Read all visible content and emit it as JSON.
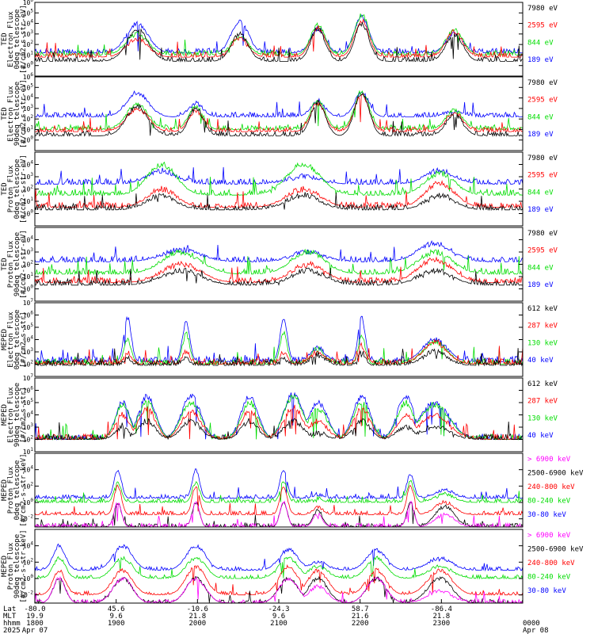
{
  "chart_data": {
    "type": "line",
    "x_axis": {
      "rows": [
        {
          "name": "Lat",
          "values": [
            "-80.0",
            "45.6",
            "-10.6",
            "-24.3",
            "58.7",
            "-86.4",
            ""
          ]
        },
        {
          "name": "MLT",
          "values": [
            "19.9",
            "9.6",
            "21.8",
            "9.6",
            "21.6",
            "21.8",
            ""
          ]
        },
        {
          "name": "hhmm",
          "values": [
            "1800",
            "1900",
            "2000",
            "2100",
            "2200",
            "2300",
            "0000"
          ]
        },
        {
          "name": "2025",
          "values": [
            "Apr 07",
            "",
            "",
            "",
            "",
            "",
            "Apr 08"
          ]
        }
      ],
      "time_range_hours": [
        18,
        24
      ]
    },
    "panels": [
      {
        "ylabel": [
          "TED",
          "Electron Flux",
          "0deg telescope",
          "[#/cm2-s-str-eV]"
        ],
        "yscale": "log",
        "ylim_exp": [
          -1,
          6
        ],
        "tick_exps": [
          0,
          1,
          2,
          3,
          4,
          5,
          6
        ],
        "legend": [
          {
            "text": "7980 eV",
            "color": "#000000"
          },
          {
            "text": "2595 eV",
            "color": "#ff0000"
          },
          {
            "text": "844 eV",
            "color": "#00dd00"
          },
          {
            "text": "189 eV",
            "color": "#0000ff"
          }
        ],
        "bursts": [
          {
            "center": 0.21,
            "width": 0.045,
            "peak": [
              3.4,
              2.5,
              3.0,
              4.0
            ]
          },
          {
            "center": 0.42,
            "width": 0.035,
            "peak": [
              3.0,
              2.6,
              2.8,
              4.2
            ]
          },
          {
            "center": 0.58,
            "width": 0.03,
            "peak": [
              3.5,
              3.6,
              3.8,
              3.5
            ]
          },
          {
            "center": 0.67,
            "width": 0.03,
            "peak": [
              4.0,
              4.2,
              4.8,
              4.6
            ]
          },
          {
            "center": 0.86,
            "width": 0.035,
            "peak": [
              3.0,
              3.2,
              3.4,
              3.0
            ]
          }
        ],
        "baseline": [
          0.4,
          0.8,
          1.0,
          1.2
        ]
      },
      {
        "ylabel": [
          "TED",
          "Electron Flux",
          "90deg telescope",
          "[#/cm2-s-str-eV]"
        ],
        "yscale": "log",
        "ylim_exp": [
          -1,
          6
        ],
        "tick_exps": [
          0,
          1,
          2,
          3,
          4,
          5,
          6
        ],
        "legend": [
          {
            "text": "7980 eV",
            "color": "#000000"
          },
          {
            "text": "2595 eV",
            "color": "#ff0000"
          },
          {
            "text": "844 eV",
            "color": "#00dd00"
          },
          {
            "text": "189 eV",
            "color": "#0000ff"
          }
        ],
        "bursts": [
          {
            "center": 0.21,
            "width": 0.045,
            "peak": [
              3.2,
              3.0,
              3.4,
              4.5
            ]
          },
          {
            "center": 0.33,
            "width": 0.03,
            "peak": [
              3.0,
              2.8,
              3.2,
              3.5
            ]
          },
          {
            "center": 0.58,
            "width": 0.03,
            "peak": [
              3.6,
              3.5,
              3.8,
              3.7
            ]
          },
          {
            "center": 0.67,
            "width": 0.03,
            "peak": [
              4.5,
              4.2,
              4.6,
              4.5
            ]
          },
          {
            "center": 0.86,
            "width": 0.035,
            "peak": [
              2.4,
              2.6,
              2.8,
              2.8
            ]
          }
        ],
        "baseline": [
          0.4,
          0.8,
          1.0,
          2.2
        ]
      },
      {
        "ylabel": [
          "TED",
          "Proton Flux",
          "0deg telescope",
          "[#/cm2-s-str-eV]"
        ],
        "yscale": "log",
        "ylim_exp": [
          -1,
          5
        ],
        "tick_exps": [
          0,
          1,
          2,
          3,
          4
        ],
        "legend": [
          {
            "text": "7980 eV",
            "color": "#000000"
          },
          {
            "text": "2595 eV",
            "color": "#ff0000"
          },
          {
            "text": "844 eV",
            "color": "#00dd00"
          },
          {
            "text": "189 eV",
            "color": "#0000ff"
          }
        ],
        "bursts": [
          {
            "center": 0.26,
            "width": 0.06,
            "peak": [
              1.5,
              2.0,
              4.0,
              3.5
            ]
          },
          {
            "center": 0.55,
            "width": 0.07,
            "peak": [
              1.5,
              2.0,
              4.0,
              3.0
            ]
          },
          {
            "center": 0.83,
            "width": 0.06,
            "peak": [
              1.5,
              2.5,
              3.3,
              3.5
            ]
          }
        ],
        "baseline": [
          0.3,
          0.5,
          1.5,
          2.4
        ]
      },
      {
        "ylabel": [
          "TED",
          "Proton Flux",
          "90deg telescope",
          "[#/cm2-s-str-eV]"
        ],
        "yscale": "log",
        "ylim_exp": [
          -1,
          5
        ],
        "tick_exps": [
          0,
          1,
          2,
          3,
          4
        ],
        "legend": [
          {
            "text": "7980 eV",
            "color": "#000000"
          },
          {
            "text": "2595 eV",
            "color": "#ff0000"
          },
          {
            "text": "844 eV",
            "color": "#00dd00"
          },
          {
            "text": "189 eV",
            "color": "#0000ff"
          }
        ],
        "bursts": [
          {
            "center": 0.3,
            "width": 0.08,
            "peak": [
              1.5,
              2.0,
              3.0,
              3.2
            ]
          },
          {
            "center": 0.56,
            "width": 0.07,
            "peak": [
              1.5,
              2.0,
              3.0,
              3.0
            ]
          },
          {
            "center": 0.82,
            "width": 0.07,
            "peak": [
              1.5,
              2.4,
              3.0,
              3.7
            ]
          }
        ],
        "baseline": [
          0.3,
          0.5,
          1.2,
          2.2
        ]
      },
      {
        "ylabel": [
          "MEPED",
          "Electron Flux",
          "0deg telescope",
          "[#/cm2-s-str]"
        ],
        "yscale": "log",
        "ylim_exp": [
          1,
          7
        ],
        "tick_exps": [
          2,
          3,
          4,
          5,
          6,
          7
        ],
        "legend": [
          {
            "text": "612 keV",
            "color": "#000000"
          },
          {
            "text": "287 keV",
            "color": "#ff0000"
          },
          {
            "text": "130 keV",
            "color": "#00dd00"
          },
          {
            "text": "40 keV",
            "color": "#0000ff"
          }
        ],
        "bursts": [
          {
            "center": 0.19,
            "width": 0.015,
            "peak": [
              2.5,
              3.0,
              4.0,
              5.8
            ]
          },
          {
            "center": 0.31,
            "width": 0.015,
            "peak": [
              2.5,
              3.0,
              4.5,
              5.5
            ]
          },
          {
            "center": 0.51,
            "width": 0.015,
            "peak": [
              2.5,
              3.0,
              4.5,
              5.7
            ]
          },
          {
            "center": 0.58,
            "width": 0.03,
            "peak": [
              2.8,
              3.0,
              3.2,
              3.3
            ]
          },
          {
            "center": 0.67,
            "width": 0.015,
            "peak": [
              3.0,
              3.5,
              4.2,
              5.8
            ]
          },
          {
            "center": 0.82,
            "width": 0.05,
            "peak": [
              3.0,
              3.8,
              3.8,
              4.0
            ]
          }
        ],
        "baseline": [
          1.9,
          2.0,
          2.0,
          2.2
        ]
      },
      {
        "ylabel": [
          "MEPED",
          "Electron Flux",
          "90deg telescope",
          "[#/cm2-s-str]"
        ],
        "yscale": "log",
        "ylim_exp": [
          1,
          7
        ],
        "tick_exps": [
          1,
          2,
          3,
          4,
          5,
          6,
          7
        ],
        "legend": [
          {
            "text": "612 keV",
            "color": "#000000"
          },
          {
            "text": "287 keV",
            "color": "#ff0000"
          },
          {
            "text": "130 keV",
            "color": "#00dd00"
          },
          {
            "text": "40 keV",
            "color": "#0000ff"
          }
        ],
        "bursts": [
          {
            "center": 0.18,
            "width": 0.03,
            "peak": [
              3.0,
              4.0,
              4.8,
              5.0
            ]
          },
          {
            "center": 0.23,
            "width": 0.035,
            "peak": [
              3.5,
              4.5,
              5.2,
              5.5
            ]
          },
          {
            "center": 0.32,
            "width": 0.04,
            "peak": [
              3.5,
              4.3,
              5.0,
              5.5
            ]
          },
          {
            "center": 0.44,
            "width": 0.035,
            "peak": [
              3.5,
              4.3,
              5.0,
              5.5
            ]
          },
          {
            "center": 0.53,
            "width": 0.04,
            "peak": [
              3.5,
              4.6,
              5.5,
              5.7
            ]
          },
          {
            "center": 0.58,
            "width": 0.04,
            "peak": [
              2.5,
              3.5,
              4.5,
              5.0
            ]
          },
          {
            "center": 0.67,
            "width": 0.035,
            "peak": [
              3.5,
              4.5,
              5.0,
              5.5
            ]
          },
          {
            "center": 0.76,
            "width": 0.035,
            "peak": [
              3.0,
              4.0,
              5.0,
              5.5
            ]
          },
          {
            "center": 0.82,
            "width": 0.06,
            "peak": [
              3.0,
              4.0,
              4.8,
              5.0
            ]
          }
        ],
        "baseline": [
          2.0,
          2.0,
          2.0,
          2.0
        ]
      },
      {
        "ylabel": [
          "MEPED",
          "Proton Flux",
          "0deg telescope",
          "[#/cm2-s-str-keV]"
        ],
        "yscale": "log",
        "ylim_exp": [
          -3,
          6
        ],
        "tick_exps": [
          -2,
          0,
          2,
          4
        ],
        "legend": [
          {
            "text": "> 6900 keV",
            "color": "#ff00ff"
          },
          {
            "text": "2500-6900 keV",
            "color": "#000000"
          },
          {
            "text": "240-800 keV",
            "color": "#ff0000"
          },
          {
            "text": "80-240 keV",
            "color": "#00dd00"
          },
          {
            "text": "30-80 keV",
            "color": "#0000ff"
          }
        ],
        "bursts": [
          {
            "center": 0.17,
            "width": 0.015,
            "peak": [
              0,
              0,
              2.0,
              2.5,
              4.0
            ]
          },
          {
            "center": 0.33,
            "width": 0.015,
            "peak": [
              0,
              0,
              2.0,
              2.5,
              4.0
            ]
          },
          {
            "center": 0.51,
            "width": 0.015,
            "peak": [
              0,
              0,
              2.0,
              2.5,
              4.0
            ]
          },
          {
            "center": 0.58,
            "width": 0.02,
            "peak": [
              -1.5,
              -1.0,
              -0.5,
              0.5,
              1.0
            ]
          },
          {
            "center": 0.77,
            "width": 0.015,
            "peak": [
              0,
              0,
              2.0,
              2.5,
              3.5
            ]
          },
          {
            "center": 0.84,
            "width": 0.04,
            "peak": [
              -1.5,
              -0.5,
              0.0,
              1.0,
              1.5
            ]
          }
        ],
        "baseline": [
          -3.0,
          -3.0,
          -1.5,
          0.0,
          0.5
        ]
      },
      {
        "ylabel": [
          "MEPED",
          "Proton Flux",
          "90deg telescope",
          "[#/cm2-s-str-keV]"
        ],
        "yscale": "log",
        "ylim_exp": [
          -3,
          6
        ],
        "tick_exps": [
          -2,
          0,
          2,
          4
        ],
        "legend": [
          {
            "text": "> 6900 keV",
            "color": "#ff00ff"
          },
          {
            "text": "2500-6900 keV",
            "color": "#000000"
          },
          {
            "text": "240-800 keV",
            "color": "#ff0000"
          },
          {
            "text": "80-240 keV",
            "color": "#00dd00"
          },
          {
            "text": "30-80 keV",
            "color": "#0000ff"
          }
        ],
        "bursts": [
          {
            "center": 0.05,
            "width": 0.025,
            "peak": [
              0,
              0,
              1.0,
              2.5,
              4.0
            ]
          },
          {
            "center": 0.18,
            "width": 0.04,
            "peak": [
              0,
              0,
              1.0,
              2.5,
              4.0
            ]
          },
          {
            "center": 0.33,
            "width": 0.04,
            "peak": [
              0,
              0,
              1.5,
              2.5,
              4.0
            ]
          },
          {
            "center": 0.52,
            "width": 0.04,
            "peak": [
              0,
              0,
              1.5,
              2.5,
              3.5
            ]
          },
          {
            "center": 0.58,
            "width": 0.04,
            "peak": [
              -1.0,
              0,
              1.0,
              1.5,
              2.0
            ]
          },
          {
            "center": 0.7,
            "width": 0.04,
            "peak": [
              0,
              0,
              1.0,
              2.5,
              3.5
            ]
          },
          {
            "center": 0.83,
            "width": 0.05,
            "peak": [
              -1.5,
              0,
              1.0,
              1.5,
              2.5
            ]
          }
        ],
        "baseline": [
          -3.0,
          -3.0,
          -2.0,
          0.0,
          1.0
        ]
      }
    ]
  }
}
